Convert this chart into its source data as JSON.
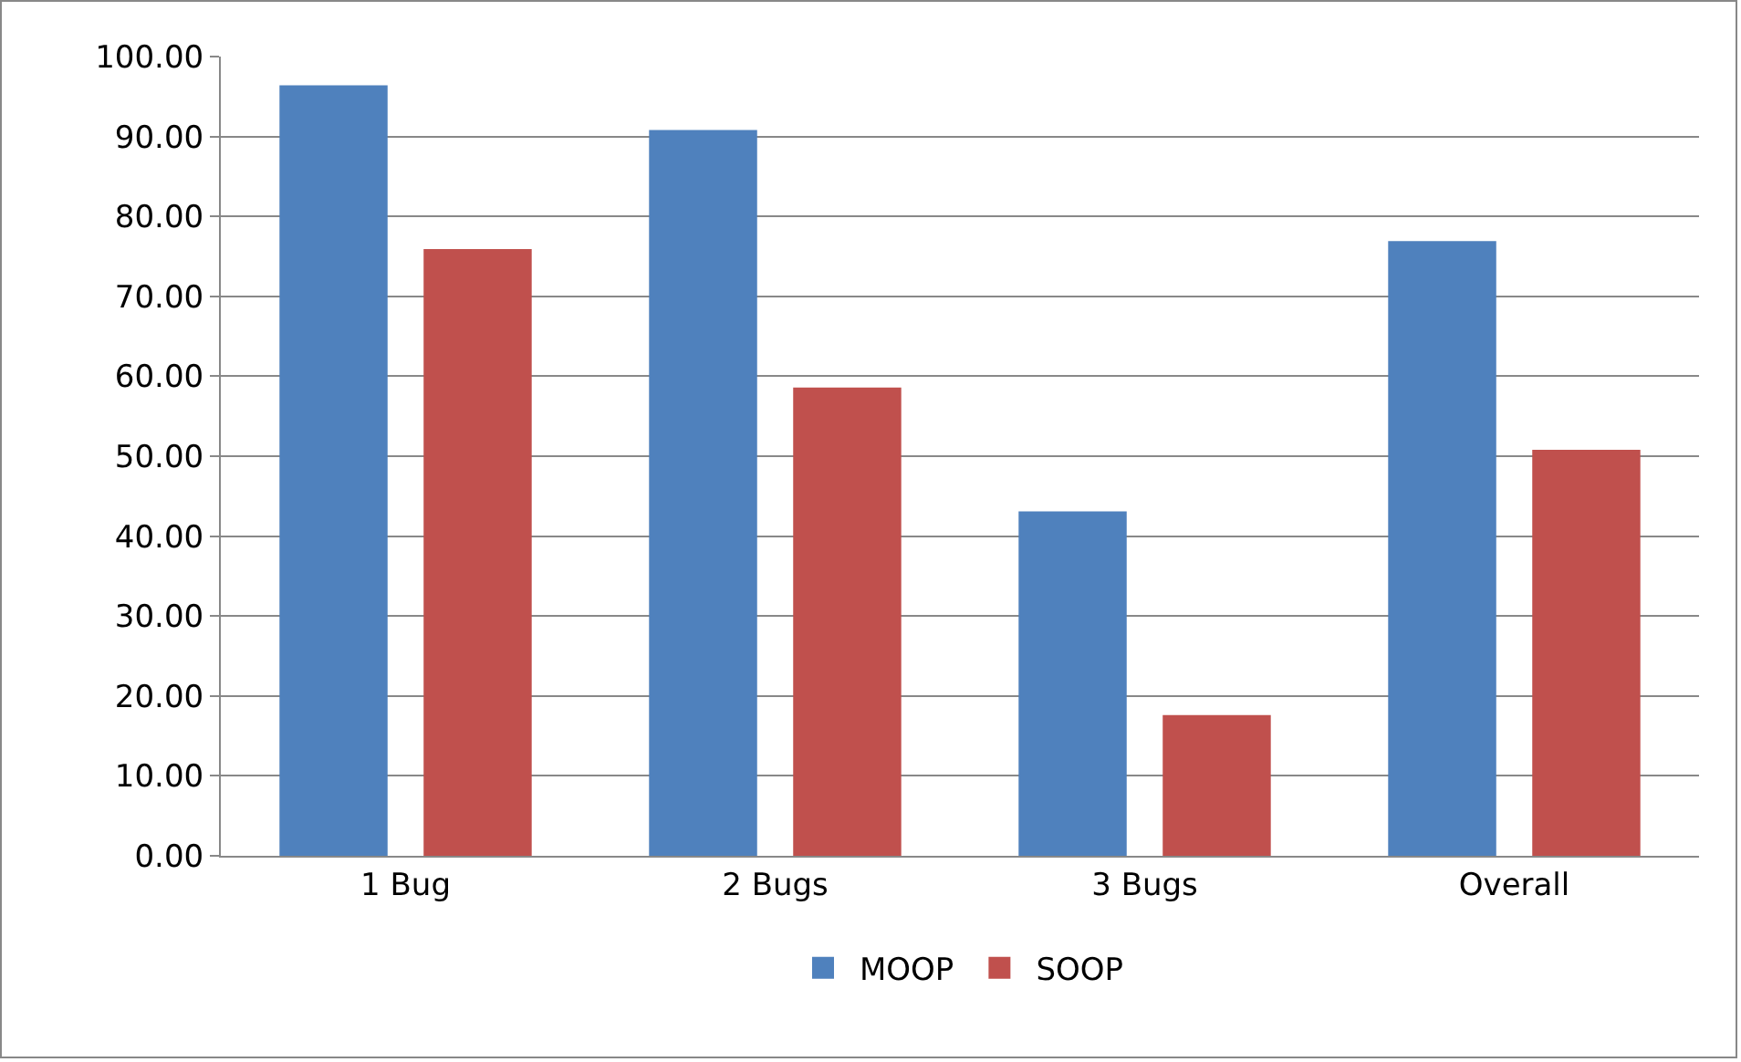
{
  "chart_data": {
    "type": "bar",
    "categories": [
      "1 Bug",
      "2 Bugs",
      "3 Bugs",
      "Overall"
    ],
    "series": [
      {
        "name": "MOOP",
        "color": "#4f81bd",
        "values": [
          96.4,
          90.8,
          43.1,
          76.9
        ]
      },
      {
        "name": "SOOP",
        "color": "#c0504d",
        "values": [
          75.9,
          58.6,
          17.6,
          50.8
        ]
      }
    ],
    "ylim": [
      0,
      100
    ],
    "yticks": [
      {
        "value": 0,
        "label": "0.00"
      },
      {
        "value": 10,
        "label": "10.00"
      },
      {
        "value": 20,
        "label": "20.00"
      },
      {
        "value": 30,
        "label": "30.00"
      },
      {
        "value": 40,
        "label": "40.00"
      },
      {
        "value": 50,
        "label": "50.00"
      },
      {
        "value": 60,
        "label": "60.00"
      },
      {
        "value": 70,
        "label": "70.00"
      },
      {
        "value": 80,
        "label": "80.00"
      },
      {
        "value": 90,
        "label": "90.00"
      },
      {
        "value": 100,
        "label": "100.00"
      }
    ],
    "grid": "y",
    "legend": "bottom"
  }
}
